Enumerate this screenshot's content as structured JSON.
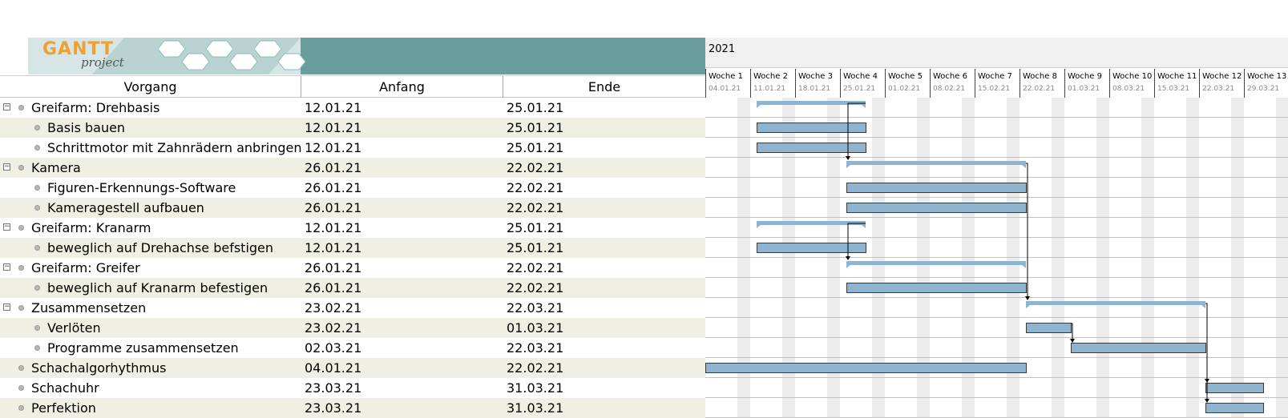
{
  "logo": {
    "title": "GANTT",
    "subtitle": "project"
  },
  "columns": {
    "task": "Vorgang",
    "start": "Anfang",
    "end": "Ende"
  },
  "year": "2021",
  "weeks": [
    {
      "name": "Woche 1",
      "date": "04.01.21"
    },
    {
      "name": "Woche 2",
      "date": "11.01.21"
    },
    {
      "name": "Woche 3",
      "date": "18.01.21"
    },
    {
      "name": "Woche 4",
      "date": "25.01.21"
    },
    {
      "name": "Woche 5",
      "date": "01.02.21"
    },
    {
      "name": "Woche 6",
      "date": "08.02.21"
    },
    {
      "name": "Woche 7",
      "date": "15.02.21"
    },
    {
      "name": "Woche 8",
      "date": "22.02.21"
    },
    {
      "name": "Woche 9",
      "date": "01.03.21"
    },
    {
      "name": "Woche 10",
      "date": "08.03.21"
    },
    {
      "name": "Woche 11",
      "date": "15.03.21"
    },
    {
      "name": "Woche 12",
      "date": "22.03.21"
    },
    {
      "name": "Woche 13",
      "date": "29.03.21"
    }
  ],
  "tasks": [
    {
      "name": "Greifarm: Drehbasis",
      "start": "12.01.21",
      "end": "25.01.21",
      "level": 0,
      "group": true,
      "start_day": 8,
      "end_day": 25
    },
    {
      "name": "Basis bauen",
      "start": "12.01.21",
      "end": "25.01.21",
      "level": 1,
      "group": false,
      "start_day": 8,
      "end_day": 25
    },
    {
      "name": "Schrittmotor mit Zahnrädern anbringen",
      "start": "12.01.21",
      "end": "25.01.21",
      "level": 1,
      "group": false,
      "start_day": 8,
      "end_day": 25
    },
    {
      "name": "Kamera",
      "start": "26.01.21",
      "end": "22.02.21",
      "level": 0,
      "group": true,
      "start_day": 22,
      "end_day": 50
    },
    {
      "name": "Figuren-Erkennungs-Software",
      "start": "26.01.21",
      "end": "22.02.21",
      "level": 1,
      "group": false,
      "start_day": 22,
      "end_day": 50
    },
    {
      "name": "Kameragestell aufbauen",
      "start": "26.01.21",
      "end": "22.02.21",
      "level": 1,
      "group": false,
      "start_day": 22,
      "end_day": 50
    },
    {
      "name": "Greifarm: Kranarm",
      "start": "12.01.21",
      "end": "25.01.21",
      "level": 0,
      "group": true,
      "start_day": 8,
      "end_day": 25
    },
    {
      "name": "beweglich auf Drehachse befstigen",
      "start": "12.01.21",
      "end": "25.01.21",
      "level": 1,
      "group": false,
      "start_day": 8,
      "end_day": 25
    },
    {
      "name": "Greifarm: Greifer",
      "start": "26.01.21",
      "end": "22.02.21",
      "level": 0,
      "group": true,
      "start_day": 22,
      "end_day": 50
    },
    {
      "name": "beweglich auf Kranarm befestigen",
      "start": "26.01.21",
      "end": "22.02.21",
      "level": 1,
      "group": false,
      "start_day": 22,
      "end_day": 50
    },
    {
      "name": "Zusammensetzen",
      "start": "23.02.21",
      "end": "22.03.21",
      "level": 0,
      "group": true,
      "start_day": 50,
      "end_day": 78
    },
    {
      "name": "Verlöten",
      "start": "23.02.21",
      "end": "01.03.21",
      "level": 1,
      "group": false,
      "start_day": 50,
      "end_day": 57
    },
    {
      "name": "Programme zusammensetzen",
      "start": "02.03.21",
      "end": "22.03.21",
      "level": 1,
      "group": false,
      "start_day": 57,
      "end_day": 78
    },
    {
      "name": "Schachalgorhythmus",
      "start": "04.01.21",
      "end": "22.02.21",
      "level": 0,
      "group": false,
      "start_day": 0,
      "end_day": 50
    },
    {
      "name": "Schachuhr",
      "start": "23.03.21",
      "end": "31.03.21",
      "level": 0,
      "group": false,
      "start_day": 78,
      "end_day": 87
    },
    {
      "name": "Perfektion",
      "start": "23.03.21",
      "end": "31.03.21",
      "level": 0,
      "group": false,
      "start_day": 78,
      "end_day": 87
    }
  ],
  "dependencies": [
    {
      "from": 0,
      "to": 3
    },
    {
      "from": 6,
      "to": 8
    },
    {
      "from": 3,
      "to": 10
    },
    {
      "from": 11,
      "to": 12
    },
    {
      "from": 10,
      "to": 14
    },
    {
      "from": 10,
      "to": 15
    }
  ],
  "colors": {
    "bar": "#8fb4cf",
    "bar_border": "#3a3a3a",
    "summary": "#8fb4cf",
    "alt_row": "#eff0e3",
    "banner": "#6a9e9e",
    "arrow": "#000000"
  }
}
